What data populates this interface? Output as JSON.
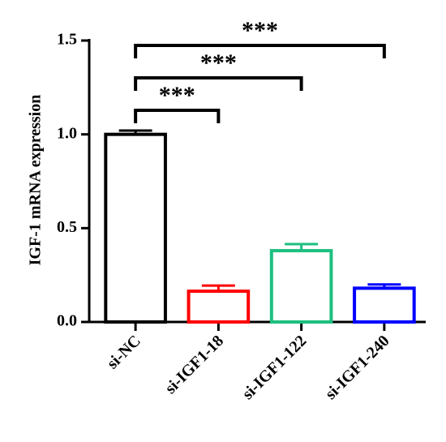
{
  "chart_data": {
    "type": "bar",
    "y_label": "IGF-1 mRNA expression",
    "categories": [
      "si-NC",
      "si-IGF1-18",
      "si-IGF1-122",
      "si-IGF1-240"
    ],
    "values": [
      1.0,
      0.164,
      0.38,
      0.18
    ],
    "errors": [
      0.02,
      0.03,
      0.035,
      0.02
    ],
    "colors": [
      "#000000",
      "#ff0000",
      "#1dbf80",
      "#0000ff"
    ],
    "ylim": [
      0,
      1.5
    ],
    "yticks": [
      {
        "value": 0,
        "label": "0.0"
      },
      0.5,
      {
        "value": 1,
        "label": "1.0"
      },
      1.5
    ],
    "annotations": [
      "***",
      "***",
      "***"
    ]
  }
}
